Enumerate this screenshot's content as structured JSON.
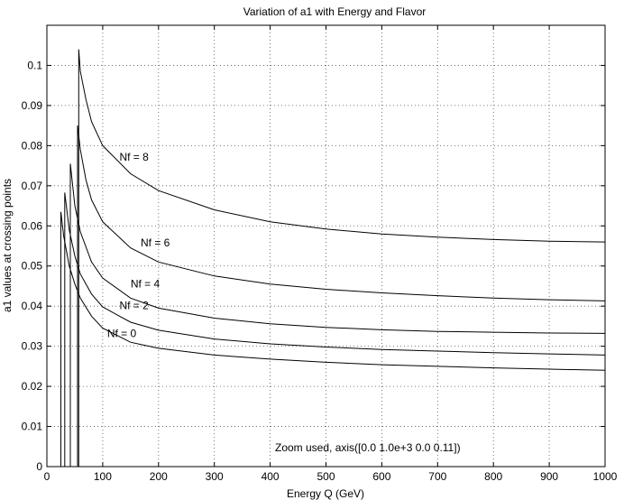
{
  "chart_data": {
    "type": "line",
    "title": "Variation of a1 with Energy and Flavor",
    "xlabel": "Energy Q (GeV)",
    "ylabel": "a1 values at crossing points",
    "xlim": [
      0,
      1000
    ],
    "ylim": [
      0,
      0.11
    ],
    "xticks": [
      0,
      100,
      200,
      300,
      400,
      500,
      600,
      700,
      800,
      900,
      1000
    ],
    "xtick_labels": [
      "0",
      "100",
      "200",
      "300",
      "400",
      "500",
      "600",
      "700",
      "800",
      "900",
      "1000"
    ],
    "yticks": [
      0,
      0.01,
      0.02,
      0.03,
      0.04,
      0.05,
      0.06,
      0.07,
      0.08,
      0.09,
      0.1
    ],
    "ytick_labels": [
      "0",
      "0.01",
      "0.02",
      "0.03",
      "0.04",
      "0.05",
      "0.06",
      "0.07",
      "0.08",
      "0.09",
      "0.1"
    ],
    "grid": true,
    "annotation": "Zoom used, axis([0.0 1.0e+3 0.0 0.11])",
    "series": [
      {
        "label": "Nf = 0",
        "x": [
          25,
          30,
          40,
          50,
          60,
          80,
          100,
          150,
          200,
          300,
          400,
          500,
          600,
          700,
          800,
          900,
          1000
        ],
        "y": [
          0.0635,
          0.0575,
          0.05,
          0.0455,
          0.042,
          0.0375,
          0.0345,
          0.031,
          0.0295,
          0.0278,
          0.0268,
          0.026,
          0.0254,
          0.025,
          0.0246,
          0.0243,
          0.024
        ]
      },
      {
        "label": "Nf = 2",
        "x": [
          32,
          40,
          50,
          60,
          80,
          100,
          150,
          200,
          300,
          400,
          500,
          600,
          700,
          800,
          900,
          1000
        ],
        "y": [
          0.0683,
          0.059,
          0.0525,
          0.048,
          0.043,
          0.0398,
          0.036,
          0.034,
          0.0318,
          0.0306,
          0.0298,
          0.0292,
          0.0288,
          0.0284,
          0.0281,
          0.0278
        ]
      },
      {
        "label": "Nf = 4",
        "x": [
          42,
          50,
          60,
          80,
          100,
          150,
          200,
          300,
          400,
          500,
          600,
          700,
          800,
          900,
          1000
        ],
        "y": [
          0.0755,
          0.065,
          0.0585,
          0.051,
          0.047,
          0.042,
          0.0395,
          0.037,
          0.0356,
          0.0347,
          0.0341,
          0.0337,
          0.0335,
          0.0333,
          0.0332
        ]
      },
      {
        "label": "Nf = 6",
        "x": [
          55,
          60,
          70,
          80,
          100,
          150,
          200,
          300,
          400,
          500,
          600,
          700,
          800,
          900,
          1000
        ],
        "y": [
          0.085,
          0.079,
          0.0715,
          0.0665,
          0.061,
          0.0545,
          0.051,
          0.0475,
          0.0455,
          0.0442,
          0.0433,
          0.0426,
          0.042,
          0.0416,
          0.0413
        ]
      },
      {
        "label": "Nf = 8",
        "x": [
          57,
          60,
          70,
          80,
          100,
          150,
          200,
          300,
          400,
          500,
          600,
          700,
          800,
          900,
          1000
        ],
        "y": [
          0.104,
          0.0985,
          0.0915,
          0.086,
          0.08,
          0.073,
          0.0688,
          0.064,
          0.061,
          0.0592,
          0.058,
          0.0572,
          0.0566,
          0.0562,
          0.056
        ]
      }
    ],
    "labels": [
      {
        "text": "Nf = 8",
        "x": 130,
        "y": 0.0772
      },
      {
        "text": "Nf = 6",
        "x": 168,
        "y": 0.0558
      },
      {
        "text": "Nf = 4",
        "x": 150,
        "y": 0.0455
      },
      {
        "text": "Nf = 2",
        "x": 130,
        "y": 0.0402
      },
      {
        "text": "Nf = 0",
        "x": 108,
        "y": 0.0332
      }
    ]
  }
}
